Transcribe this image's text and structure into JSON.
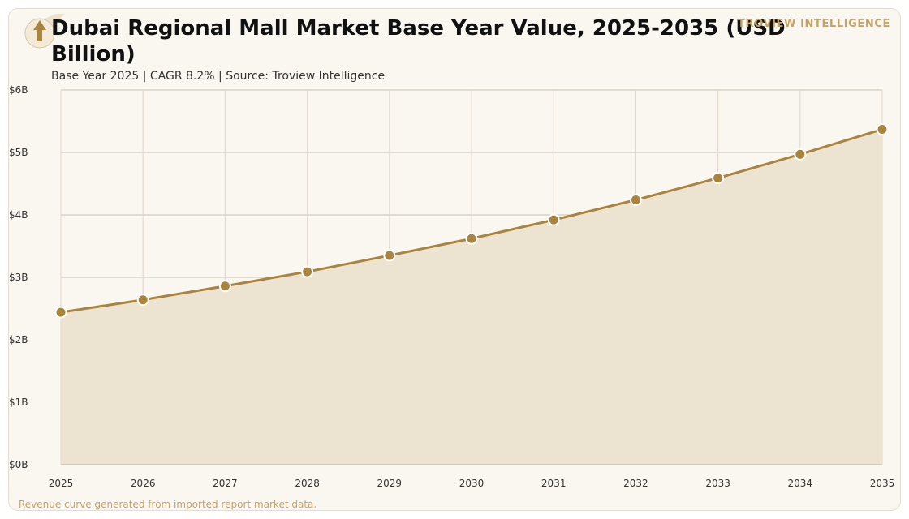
{
  "header": {
    "title": "Dubai Regional Mall Market Base Year Value, 2025-2035 (USD Billion)",
    "subtitle": "Base Year 2025 | CAGR 8.2% | Source: Troview Intelligence",
    "brand": "TROVIEW INTELLIGENCE",
    "logo_icon": "upward-arrow-icon"
  },
  "footer": {
    "note": "Revenue curve generated from imported report market data."
  },
  "colors": {
    "line": "#a8843e",
    "marker": "#a8843e",
    "area": "#ede3d1",
    "grid_h": "#c8c0b2",
    "grid_v": "#ddd6ca",
    "accent": "#c2a46b"
  },
  "chart_data": {
    "type": "area",
    "x": [
      2025,
      2026,
      2027,
      2028,
      2029,
      2030,
      2031,
      2032,
      2033,
      2034,
      2035
    ],
    "series": [
      {
        "values": [
          2.44,
          2.64,
          2.86,
          3.09,
          3.35,
          3.62,
          3.92,
          4.24,
          4.59,
          4.97,
          5.37
        ]
      }
    ],
    "ylim": [
      0,
      6
    ],
    "yticks": [
      0,
      1,
      2,
      3,
      4,
      5,
      6
    ],
    "ytick_labels": [
      "$0B",
      "$1B",
      "$2B",
      "$3B",
      "$4B",
      "$5B",
      "$6B"
    ],
    "xtick_labels": [
      "2025",
      "2026",
      "2027",
      "2028",
      "2029",
      "2030",
      "2031",
      "2032",
      "2033",
      "2034",
      "2035"
    ],
    "grid": true,
    "markers": true
  }
}
